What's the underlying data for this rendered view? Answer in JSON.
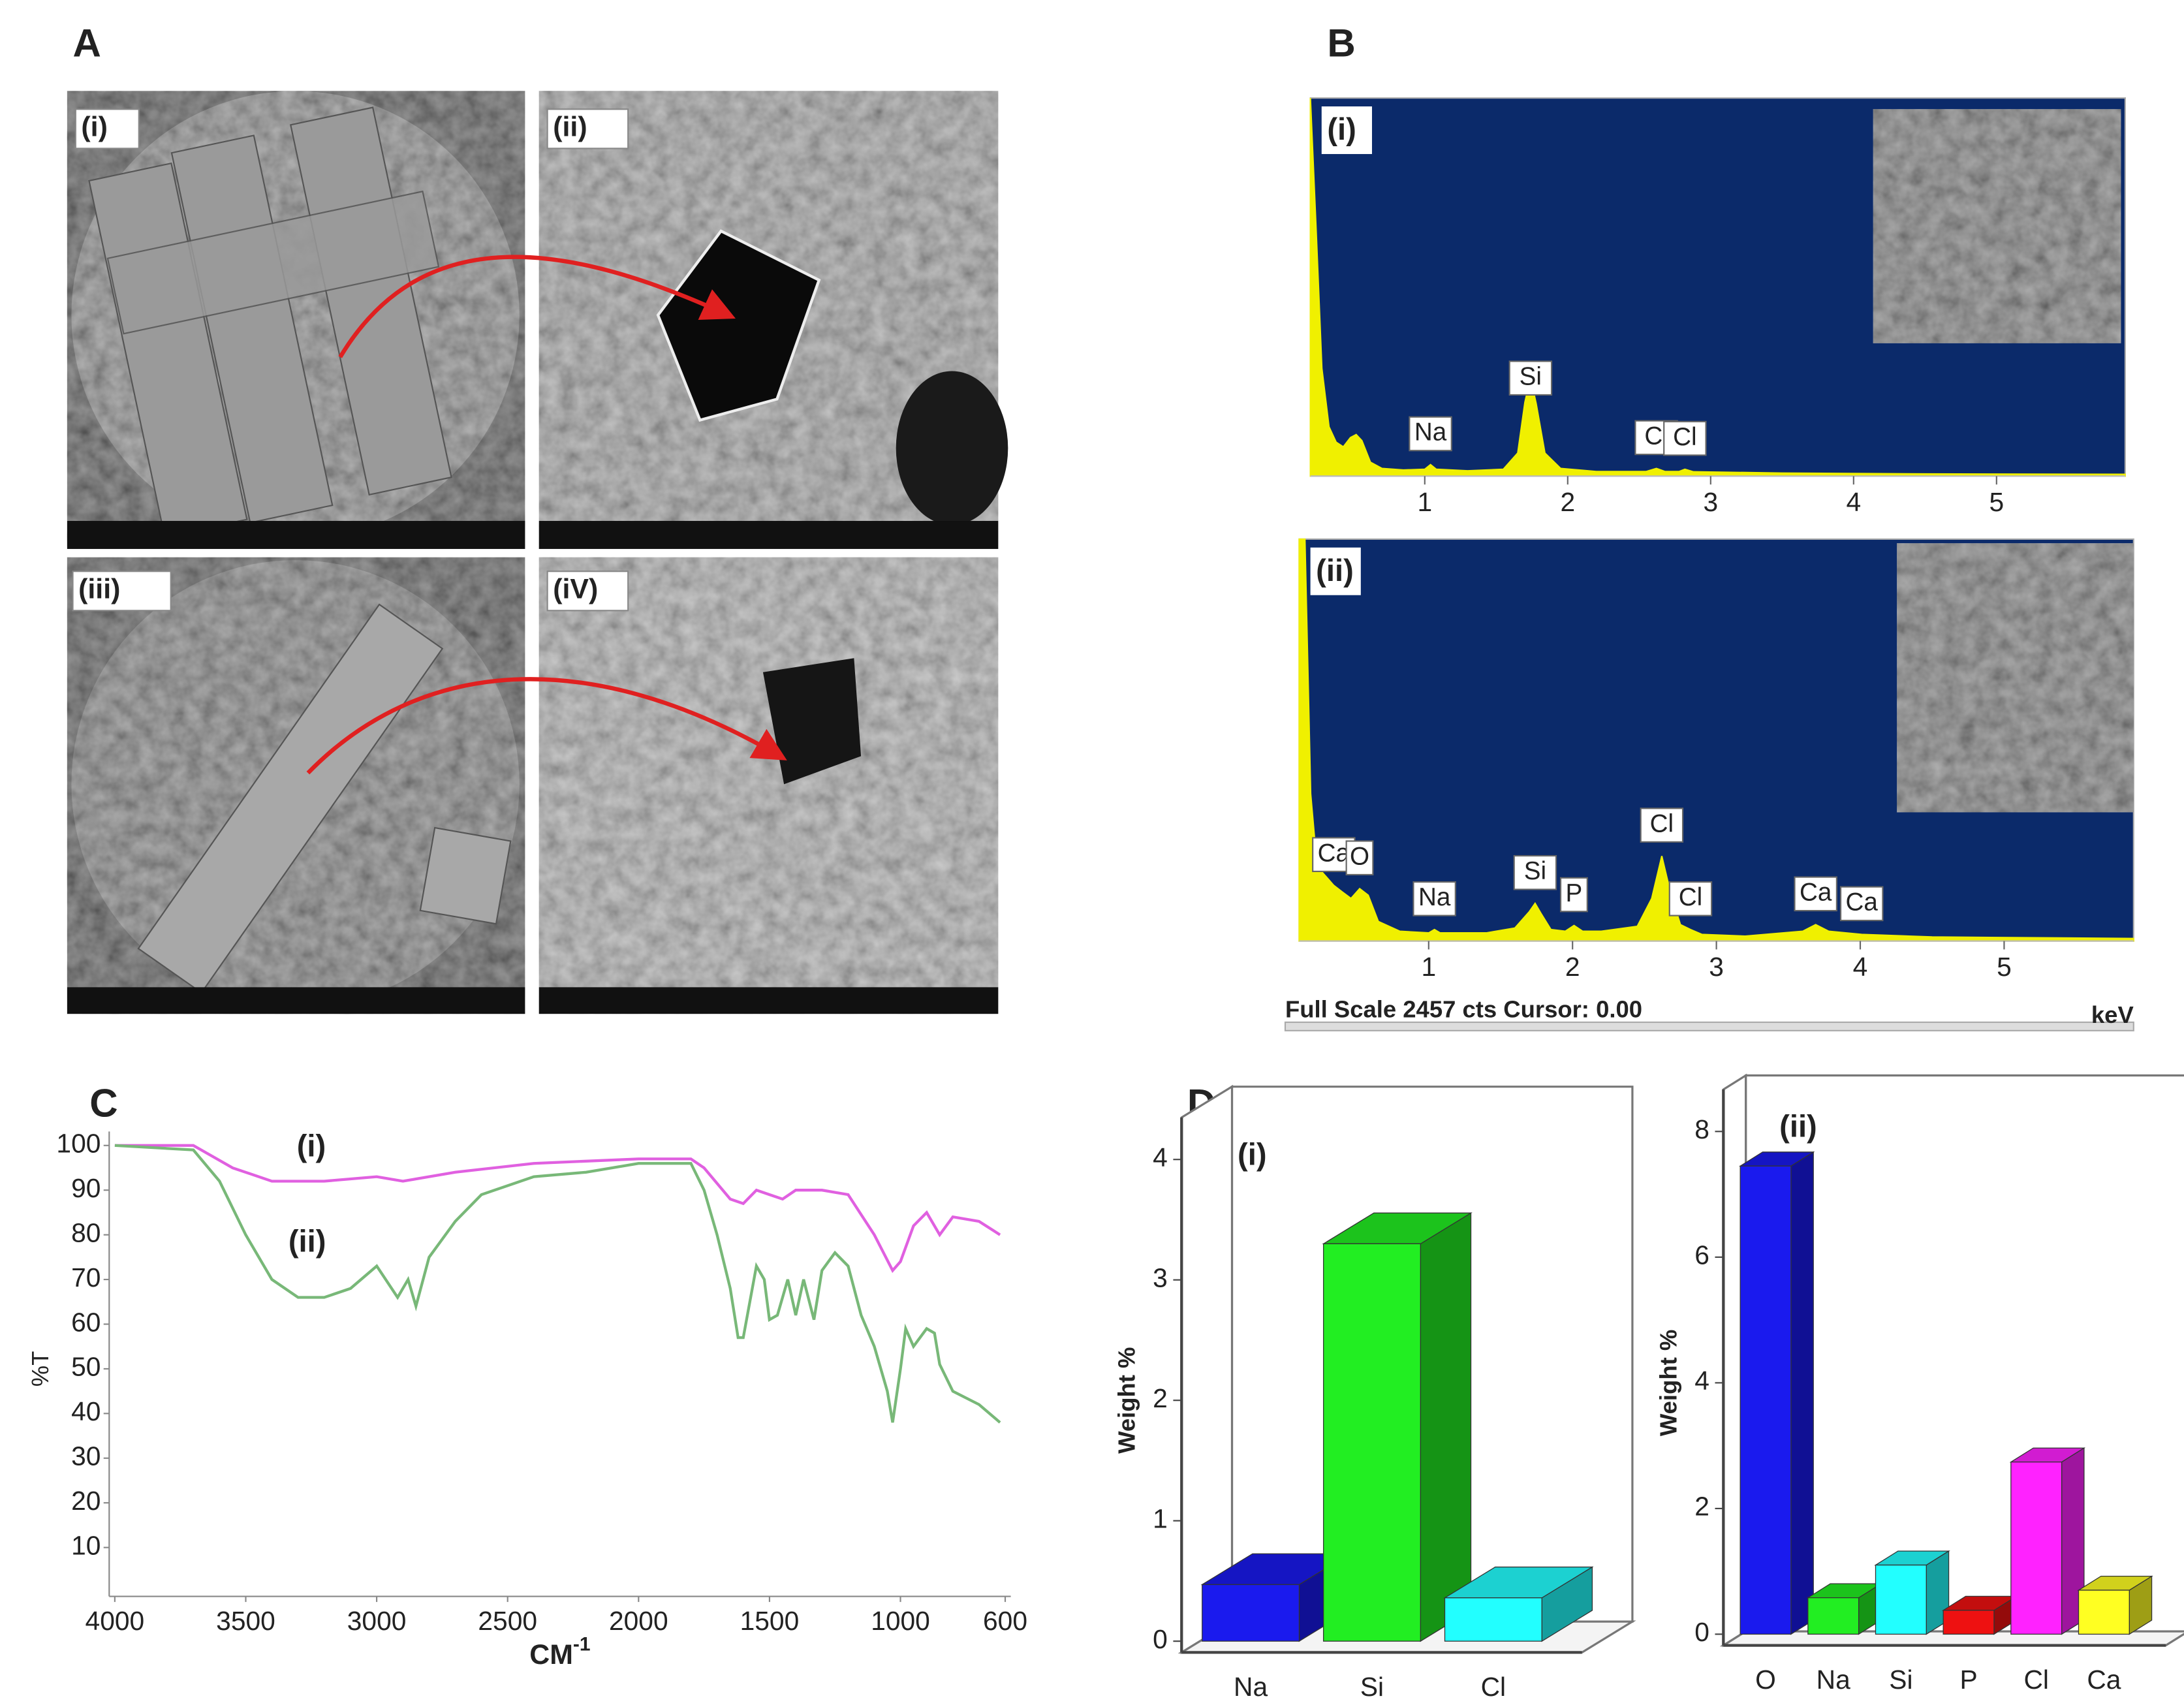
{
  "panels": [
    "A",
    "B",
    "C",
    "D"
  ],
  "sem": {
    "labels": [
      "(i)",
      "(ii)",
      "(iii)",
      "(iV)"
    ]
  },
  "chart_data": [
    {
      "type": "spectrum",
      "title": "(i)",
      "color": "#f0f000",
      "background": "#0b2a6a",
      "x": [
        0.2,
        0.24,
        0.28,
        0.33,
        0.38,
        0.43,
        0.48,
        0.52,
        0.56,
        0.62,
        0.7,
        0.85,
        1.0,
        1.04,
        1.08,
        1.3,
        1.55,
        1.65,
        1.7,
        1.74,
        1.78,
        1.84,
        1.95,
        2.2,
        2.55,
        2.62,
        2.68,
        2.78,
        2.82,
        2.88,
        3.5,
        4.5,
        5.9
      ],
      "values": [
        2457,
        1600,
        700,
        320,
        220,
        190,
        250,
        270,
        230,
        90,
        50,
        40,
        45,
        75,
        45,
        35,
        45,
        150,
        480,
        640,
        470,
        150,
        50,
        30,
        30,
        50,
        30,
        30,
        45,
        28,
        20,
        15,
        12
      ],
      "xlim": [
        0.2,
        5.9
      ],
      "ylim": [
        0,
        2457
      ],
      "xticks": [
        1,
        2,
        3,
        4,
        5
      ],
      "peaks": [
        {
          "label": "Na",
          "x": 1.04
        },
        {
          "label": "Si",
          "x": 1.74
        },
        {
          "label": "Cl",
          "x": 2.62
        },
        {
          "label": "Cl",
          "x": 2.82
        }
      ]
    },
    {
      "type": "spectrum",
      "title": "(ii)",
      "color": "#f0f000",
      "background": "#0b2a6a",
      "x": [
        0.1,
        0.14,
        0.18,
        0.22,
        0.26,
        0.3,
        0.34,
        0.4,
        0.46,
        0.52,
        0.58,
        0.65,
        0.8,
        1.0,
        1.04,
        1.08,
        1.4,
        1.6,
        1.7,
        1.74,
        1.78,
        1.85,
        1.95,
        2.01,
        2.07,
        2.2,
        2.45,
        2.55,
        2.62,
        2.68,
        2.75,
        2.82,
        2.9,
        3.2,
        3.6,
        3.69,
        3.78,
        4.01,
        4.5,
        5.9
      ],
      "values": [
        2457,
        2457,
        900,
        500,
        420,
        380,
        340,
        300,
        260,
        320,
        280,
        120,
        60,
        50,
        70,
        50,
        50,
        80,
        180,
        230,
        170,
        70,
        60,
        95,
        60,
        60,
        90,
        260,
        520,
        300,
        100,
        70,
        40,
        30,
        60,
        100,
        60,
        40,
        25,
        15
      ],
      "xlim": [
        0.1,
        5.9
      ],
      "ylim": [
        0,
        2457
      ],
      "xticks": [
        1,
        2,
        3,
        4,
        5
      ],
      "peaks": [
        {
          "label": "Ca",
          "x": 0.34
        },
        {
          "label": "O",
          "x": 0.52
        },
        {
          "label": "Na",
          "x": 1.04
        },
        {
          "label": "Si",
          "x": 1.74
        },
        {
          "label": "P",
          "x": 2.01
        },
        {
          "label": "Cl",
          "x": 2.62
        },
        {
          "label": "Cl",
          "x": 2.82
        },
        {
          "label": "Ca",
          "x": 3.69
        },
        {
          "label": "Ca",
          "x": 4.01
        }
      ],
      "footer": "Full Scale 2457 cts Cursor: 0.00",
      "x_label": "keV"
    },
    {
      "type": "line",
      "x_label": "CM",
      "x_label_superscript": "-1",
      "y_label": "%T",
      "xlim": [
        4000,
        600
      ],
      "xticks": [
        4000,
        3500,
        3000,
        2500,
        2000,
        1500,
        1000,
        600
      ],
      "ylim": [
        0,
        100
      ],
      "yticks": [
        10,
        20,
        30,
        40,
        50,
        60,
        70,
        80,
        90,
        100
      ],
      "series": [
        {
          "name": "(i)",
          "color": "#e060e0",
          "x": [
            4000,
            3700,
            3550,
            3400,
            3200,
            3000,
            2900,
            2700,
            2400,
            2000,
            1800,
            1750,
            1650,
            1600,
            1550,
            1500,
            1450,
            1400,
            1300,
            1200,
            1100,
            1030,
            1000,
            950,
            900,
            850,
            800,
            700,
            620
          ],
          "values": [
            100,
            100,
            95,
            92,
            92,
            93,
            92,
            94,
            96,
            97,
            97,
            95,
            88,
            87,
            90,
            89,
            88,
            90,
            90,
            89,
            80,
            72,
            74,
            82,
            85,
            80,
            84,
            83,
            80
          ]
        },
        {
          "name": "(ii)",
          "color": "#78b878",
          "x": [
            4000,
            3700,
            3600,
            3500,
            3400,
            3300,
            3200,
            3100,
            3000,
            2920,
            2880,
            2850,
            2800,
            2700,
            2600,
            2400,
            2200,
            2000,
            1800,
            1750,
            1700,
            1650,
            1620,
            1600,
            1550,
            1520,
            1500,
            1470,
            1430,
            1400,
            1370,
            1330,
            1300,
            1250,
            1200,
            1150,
            1100,
            1050,
            1030,
            1000,
            980,
            950,
            900,
            870,
            850,
            800,
            700,
            620
          ],
          "values": [
            100,
            99,
            92,
            80,
            70,
            66,
            66,
            68,
            73,
            66,
            70,
            64,
            75,
            83,
            89,
            93,
            94,
            96,
            96,
            90,
            80,
            68,
            57,
            57,
            73,
            70,
            61,
            62,
            70,
            62,
            70,
            61,
            72,
            76,
            73,
            62,
            55,
            45,
            38,
            50,
            59,
            55,
            59,
            58,
            51,
            45,
            42,
            38
          ]
        }
      ]
    },
    {
      "type": "bar",
      "title": "(i)",
      "y_label": "Weight %",
      "categories": [
        "Na",
        "Si",
        "Cl"
      ],
      "values": [
        0.47,
        3.3,
        0.36
      ],
      "colors": [
        "#1a1aee",
        "#22ee22",
        "#22ffff"
      ],
      "ylim": [
        0,
        4
      ],
      "yticks": [
        0,
        1,
        2,
        3,
        4
      ]
    },
    {
      "type": "bar",
      "title": "(ii)",
      "y_label": "Weight %",
      "categories": [
        "O",
        "Na",
        "Si",
        "P",
        "Cl",
        "Ca"
      ],
      "values": [
        7.45,
        0.58,
        1.1,
        0.38,
        2.74,
        0.7
      ],
      "colors": [
        "#1a1aee",
        "#22ee22",
        "#22ffff",
        "#ee1111",
        "#ff22ff",
        "#ffff22"
      ],
      "ylim": [
        0,
        8
      ],
      "yticks": [
        0,
        2,
        4,
        6,
        8
      ]
    }
  ]
}
